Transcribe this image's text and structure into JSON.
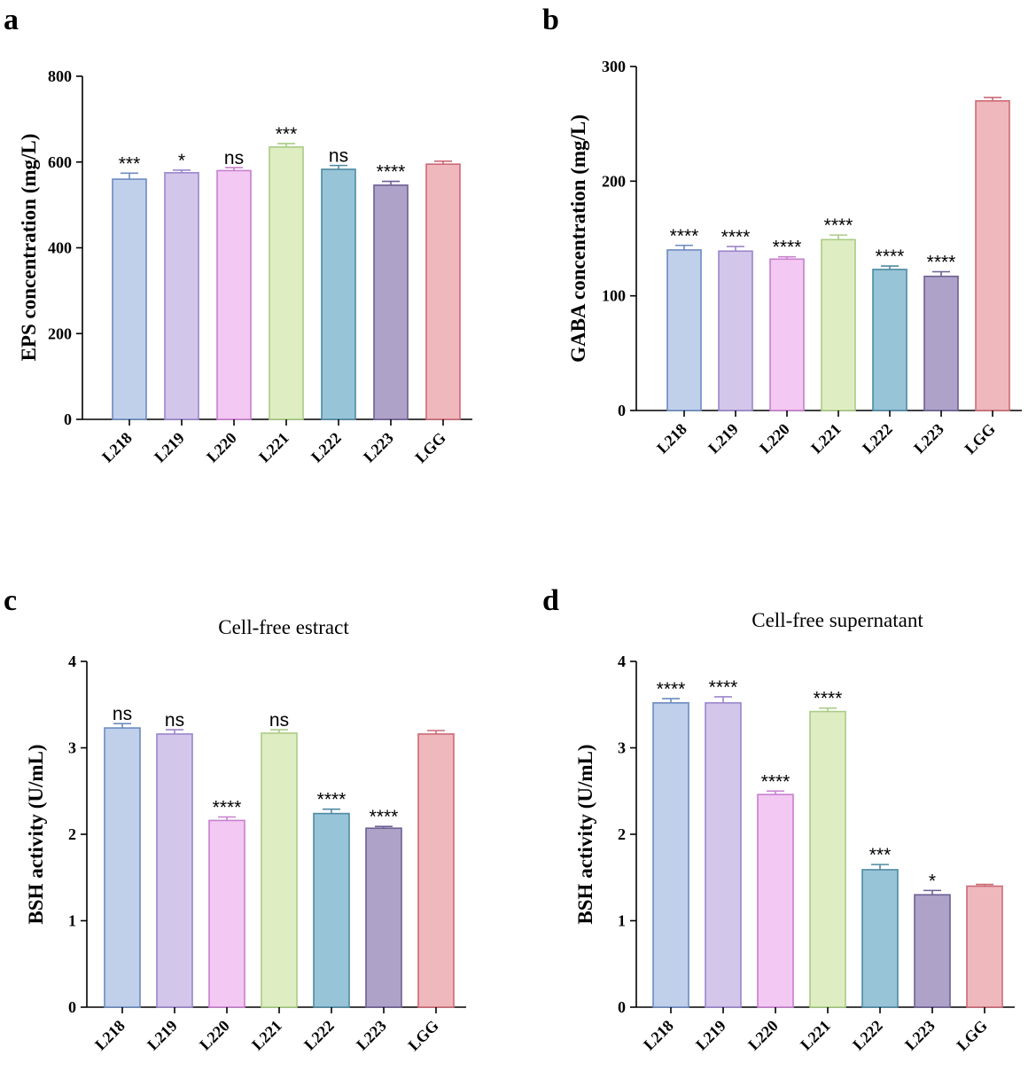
{
  "chart_data": [
    {
      "type": "bar",
      "panel": "a",
      "title": "",
      "xlabel": "",
      "ylabel": "EPS concentration (mg/L)",
      "ylim": [
        0,
        800
      ],
      "yticks": [
        0,
        200,
        400,
        600,
        800
      ],
      "categories": [
        "L218",
        "L219",
        "L220",
        "L221",
        "L222",
        "L223",
        "LGG"
      ],
      "values": [
        560,
        575,
        580,
        635,
        583,
        546,
        595
      ],
      "errors": [
        14,
        6,
        7,
        8,
        9,
        9,
        7
      ],
      "significance": [
        "***",
        "*",
        "ns",
        "***",
        "ns",
        "****",
        ""
      ]
    },
    {
      "type": "bar",
      "panel": "b",
      "title": "",
      "xlabel": "",
      "ylabel": "GABA concentration (mg/L)",
      "ylim": [
        0,
        300
      ],
      "yticks": [
        0,
        100,
        200,
        300
      ],
      "categories": [
        "L218",
        "L219",
        "L220",
        "L221",
        "L222",
        "L223",
        "LGG"
      ],
      "values": [
        140,
        139,
        132,
        149,
        123,
        117,
        270
      ],
      "errors": [
        4,
        4,
        2,
        4,
        3,
        4,
        3
      ],
      "significance": [
        "****",
        "****",
        "****",
        "****",
        "****",
        "****",
        ""
      ]
    },
    {
      "type": "bar",
      "panel": "c",
      "title": "Cell-free estract",
      "xlabel": "",
      "ylabel": "BSH activity (U/mL)",
      "ylim": [
        0,
        4
      ],
      "yticks": [
        0,
        1,
        2,
        3,
        4
      ],
      "categories": [
        "L218",
        "L219",
        "L220",
        "L221",
        "L222",
        "L223",
        "LGG"
      ],
      "values": [
        3.23,
        3.16,
        2.16,
        3.17,
        2.24,
        2.07,
        3.16
      ],
      "errors": [
        0.05,
        0.05,
        0.04,
        0.04,
        0.05,
        0.02,
        0.04
      ],
      "significance": [
        "ns",
        "ns",
        "****",
        "ns",
        "****",
        "****",
        ""
      ]
    },
    {
      "type": "bar",
      "panel": "d",
      "title": "Cell-free supernatant",
      "xlabel": "",
      "ylabel": "BSH activity (U/mL)",
      "ylim": [
        0,
        4
      ],
      "yticks": [
        0,
        1,
        2,
        3,
        4
      ],
      "categories": [
        "L218",
        "L219",
        "L220",
        "L221",
        "L222",
        "L223",
        "LGG"
      ],
      "values": [
        3.52,
        3.52,
        2.46,
        3.42,
        1.59,
        1.3,
        1.4
      ],
      "errors": [
        0.05,
        0.07,
        0.04,
        0.04,
        0.06,
        0.05,
        0.02
      ],
      "significance": [
        "****",
        "****",
        "****",
        "****",
        "***",
        "*",
        ""
      ]
    }
  ],
  "colors": {
    "fills": [
      "#c0d0eb",
      "#d2c6ea",
      "#f3c8f2",
      "#dfedc3",
      "#97c4d6",
      "#aea2c9",
      "#efb8bd"
    ],
    "edges": [
      "#6b8bbf",
      "#9b86cc",
      "#c87fcf",
      "#a9cc84",
      "#4e8aa3",
      "#6d5f93",
      "#cc6a76"
    ]
  }
}
